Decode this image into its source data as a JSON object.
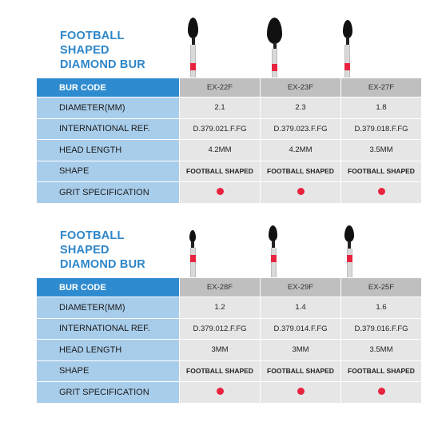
{
  "tables": [
    {
      "title_lines": [
        "FOOTBALL",
        "SHAPED",
        "DIAMOND BUR"
      ],
      "header_label": "BUR CODE",
      "codes": [
        "EX-22F",
        "EX-23F",
        "EX-27F"
      ],
      "row_labels": [
        "DIAMETER(MM)",
        "INTERNATIONAL REF.",
        "HEAD LENGTH",
        "SHAPE",
        "GRIT SPECIFICATION"
      ],
      "diameter": [
        "2.1",
        "2.3",
        "1.8"
      ],
      "iso_ref": [
        "D.379.021.F.FG",
        "D.379.023.F.FG",
        "D.379.018.F.FG"
      ],
      "head_length": [
        "4.2MM",
        "4.2MM",
        "3.5MM"
      ],
      "shape": [
        "FOOTBALL SHAPED",
        "FOOTBALL SHAPED",
        "FOOTBALL SHAPED"
      ],
      "grit_color": "#e8233f"
    },
    {
      "title_lines": [
        "FOOTBALL",
        "SHAPED",
        "DIAMOND BUR"
      ],
      "header_label": "BUR CODE",
      "codes": [
        "EX-28F",
        "EX-29F",
        "EX-25F"
      ],
      "row_labels": [
        "DIAMETER(MM)",
        "INTERNATIONAL REF.",
        "HEAD LENGTH",
        "SHAPE",
        "GRIT SPECIFICATION"
      ],
      "diameter": [
        "1.2",
        "1.4",
        "1.6"
      ],
      "iso_ref": [
        "D.379.012.F.FG",
        "D.379.014.F.FG",
        "D.379.016.F.FG"
      ],
      "head_length": [
        "3MM",
        "3MM",
        "3.5MM"
      ],
      "shape": [
        "FOOTBALL SHAPED",
        "FOOTBALL SHAPED",
        "FOOTBALL SHAPED"
      ],
      "grit_color": "#e8233f"
    }
  ],
  "colors": {
    "title": "#2e86c8",
    "header_label_bg": "#2e8bd0",
    "label_bg": "#a8cdeb",
    "header_cell_bg": "#bfbfbf",
    "cell_bg": "#e6e6e6",
    "band": "#e8233f"
  },
  "icons": [
    "football-bur-icon"
  ]
}
